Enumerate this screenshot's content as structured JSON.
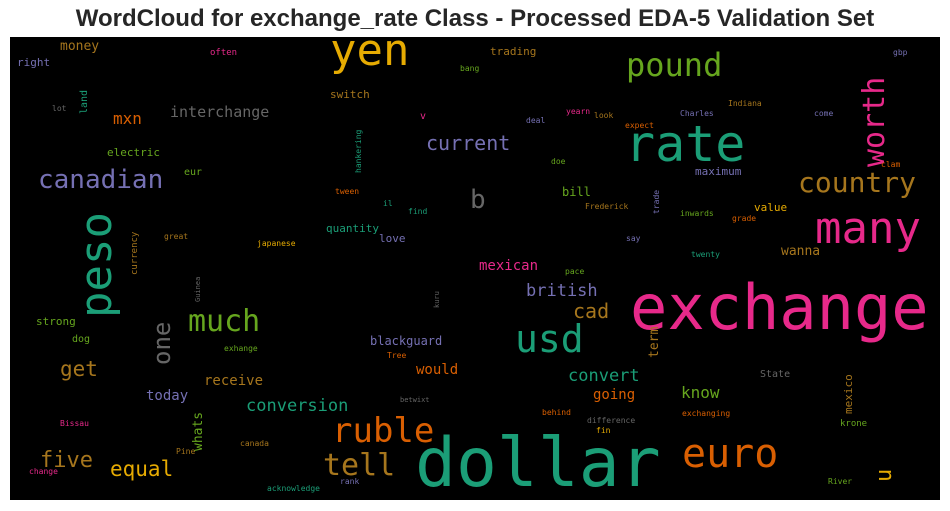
{
  "chart_data": {
    "type": "wordcloud",
    "title": "WordCloud for exchange_rate Class - Processed EDA-5 Validation Set",
    "background": "#000000",
    "colormap": [
      "#1b9e77",
      "#d95f02",
      "#7570b3",
      "#e7298a",
      "#66a61e",
      "#e6ab02",
      "#a6761d",
      "#666666"
    ],
    "words": [
      {
        "text": "dollar",
        "color": "#1b9e77"
      },
      {
        "text": "exchange",
        "color": "#e7298a"
      },
      {
        "text": "yen",
        "color": "#e6ab02"
      },
      {
        "text": "rate",
        "color": "#1b9e77"
      },
      {
        "text": "many",
        "color": "#e7298a"
      },
      {
        "text": "peso",
        "color": "#1b9e77"
      },
      {
        "text": "euro",
        "color": "#d95f02"
      },
      {
        "text": "usd",
        "color": "#1b9e77"
      },
      {
        "text": "ruble",
        "color": "#d95f02"
      },
      {
        "text": "pound",
        "color": "#66a61e"
      },
      {
        "text": "much",
        "color": "#66a61e"
      },
      {
        "text": "worth",
        "color": "#e7298a"
      },
      {
        "text": "country",
        "color": "#a6761d"
      },
      {
        "text": "tell",
        "color": "#a6761d"
      },
      {
        "text": "canadian",
        "color": "#7570b3"
      },
      {
        "text": "one",
        "color": "#666666"
      },
      {
        "text": "b",
        "color": "#666666"
      },
      {
        "text": "five",
        "color": "#a6761d"
      },
      {
        "text": "equal",
        "color": "#e6ab02"
      },
      {
        "text": "current",
        "color": "#7570b3"
      },
      {
        "text": "cad",
        "color": "#a6761d"
      },
      {
        "text": "u",
        "color": "#e6ab02"
      },
      {
        "text": "get",
        "color": "#a6761d"
      },
      {
        "text": "conversion",
        "color": "#1b9e77"
      },
      {
        "text": "convert",
        "color": "#1b9e77"
      },
      {
        "text": "british",
        "color": "#7570b3"
      },
      {
        "text": "know",
        "color": "#66a61e"
      },
      {
        "text": "mxn",
        "color": "#d95f02"
      },
      {
        "text": "interchange",
        "color": "#666666"
      },
      {
        "text": "mexican",
        "color": "#e7298a"
      },
      {
        "text": "receive",
        "color": "#a6761d"
      },
      {
        "text": "today",
        "color": "#7570b3"
      },
      {
        "text": "going",
        "color": "#d95f02"
      },
      {
        "text": "would",
        "color": "#d95f02"
      },
      {
        "text": "wanna",
        "color": "#a6761d"
      },
      {
        "text": "money",
        "color": "#a6761d"
      },
      {
        "text": "whats",
        "color": "#66a61e"
      },
      {
        "text": "term",
        "color": "#a6761d"
      },
      {
        "text": "blackguard",
        "color": "#7570b3"
      },
      {
        "text": "mexico",
        "color": "#a6761d"
      },
      {
        "text": "value",
        "color": "#e6ab02"
      },
      {
        "text": "bill",
        "color": "#66a61e"
      },
      {
        "text": "quantity",
        "color": "#1b9e77"
      },
      {
        "text": "maximum",
        "color": "#7570b3"
      },
      {
        "text": "love",
        "color": "#7570b3"
      },
      {
        "text": "trading",
        "color": "#a6761d"
      },
      {
        "text": "switch",
        "color": "#a6761d"
      },
      {
        "text": "electric",
        "color": "#66a61e"
      },
      {
        "text": "strong",
        "color": "#66a61e"
      },
      {
        "text": "land",
        "color": "#1b9e77"
      },
      {
        "text": "right",
        "color": "#7570b3"
      },
      {
        "text": "eur",
        "color": "#66a61e"
      },
      {
        "text": "dog",
        "color": "#66a61e"
      },
      {
        "text": "State",
        "color": "#666666"
      },
      {
        "text": "currency",
        "color": "#a6761d"
      },
      {
        "text": "krone",
        "color": "#66a61e"
      },
      {
        "text": "often",
        "color": "#e7298a"
      },
      {
        "text": "bang",
        "color": "#66a61e"
      },
      {
        "text": "gbp",
        "color": "#7570b3"
      },
      {
        "text": "lot",
        "color": "#666666"
      },
      {
        "text": "v",
        "color": "#e7298a"
      },
      {
        "text": "yearn",
        "color": "#e7298a"
      },
      {
        "text": "look",
        "color": "#a6761d"
      },
      {
        "text": "Charles",
        "color": "#7570b3"
      },
      {
        "text": "Indiana",
        "color": "#a6761d"
      },
      {
        "text": "come",
        "color": "#7570b3"
      },
      {
        "text": "hankering",
        "color": "#1b9e77"
      },
      {
        "text": "deal",
        "color": "#7570b3"
      },
      {
        "text": "expect",
        "color": "#d95f02"
      },
      {
        "text": "doe",
        "color": "#66a61e"
      },
      {
        "text": "clam",
        "color": "#d95f02"
      },
      {
        "text": "tween",
        "color": "#d95f02"
      },
      {
        "text": "il",
        "color": "#1b9e77"
      },
      {
        "text": "find",
        "color": "#1b9e77"
      },
      {
        "text": "Frederick",
        "color": "#a6761d"
      },
      {
        "text": "trade",
        "color": "#7570b3"
      },
      {
        "text": "inwards",
        "color": "#66a61e"
      },
      {
        "text": "grade",
        "color": "#d95f02"
      },
      {
        "text": "great",
        "color": "#a6761d"
      },
      {
        "text": "japanese",
        "color": "#e6ab02"
      },
      {
        "text": "say",
        "color": "#7570b3"
      },
      {
        "text": "twenty",
        "color": "#1b9e77"
      },
      {
        "text": "Guinea",
        "color": "#666666"
      },
      {
        "text": "kuru",
        "color": "#666666"
      },
      {
        "text": "pace",
        "color": "#66a61e"
      },
      {
        "text": "exhange",
        "color": "#66a61e"
      },
      {
        "text": "Tree",
        "color": "#d95f02"
      },
      {
        "text": "betwixt",
        "color": "#666666"
      },
      {
        "text": "behind",
        "color": "#d95f02"
      },
      {
        "text": "difference",
        "color": "#666666"
      },
      {
        "text": "exchanging",
        "color": "#d95f02"
      },
      {
        "text": "fin",
        "color": "#e6ab02"
      },
      {
        "text": "Bissau",
        "color": "#e7298a"
      },
      {
        "text": "canada",
        "color": "#a6761d"
      },
      {
        "text": "Pine",
        "color": "#a6761d"
      },
      {
        "text": "change",
        "color": "#e7298a"
      },
      {
        "text": "acknowledge",
        "color": "#1b9e77"
      },
      {
        "text": "rank",
        "color": "#7570b3"
      },
      {
        "text": "River",
        "color": "#66a61e"
      }
    ]
  }
}
